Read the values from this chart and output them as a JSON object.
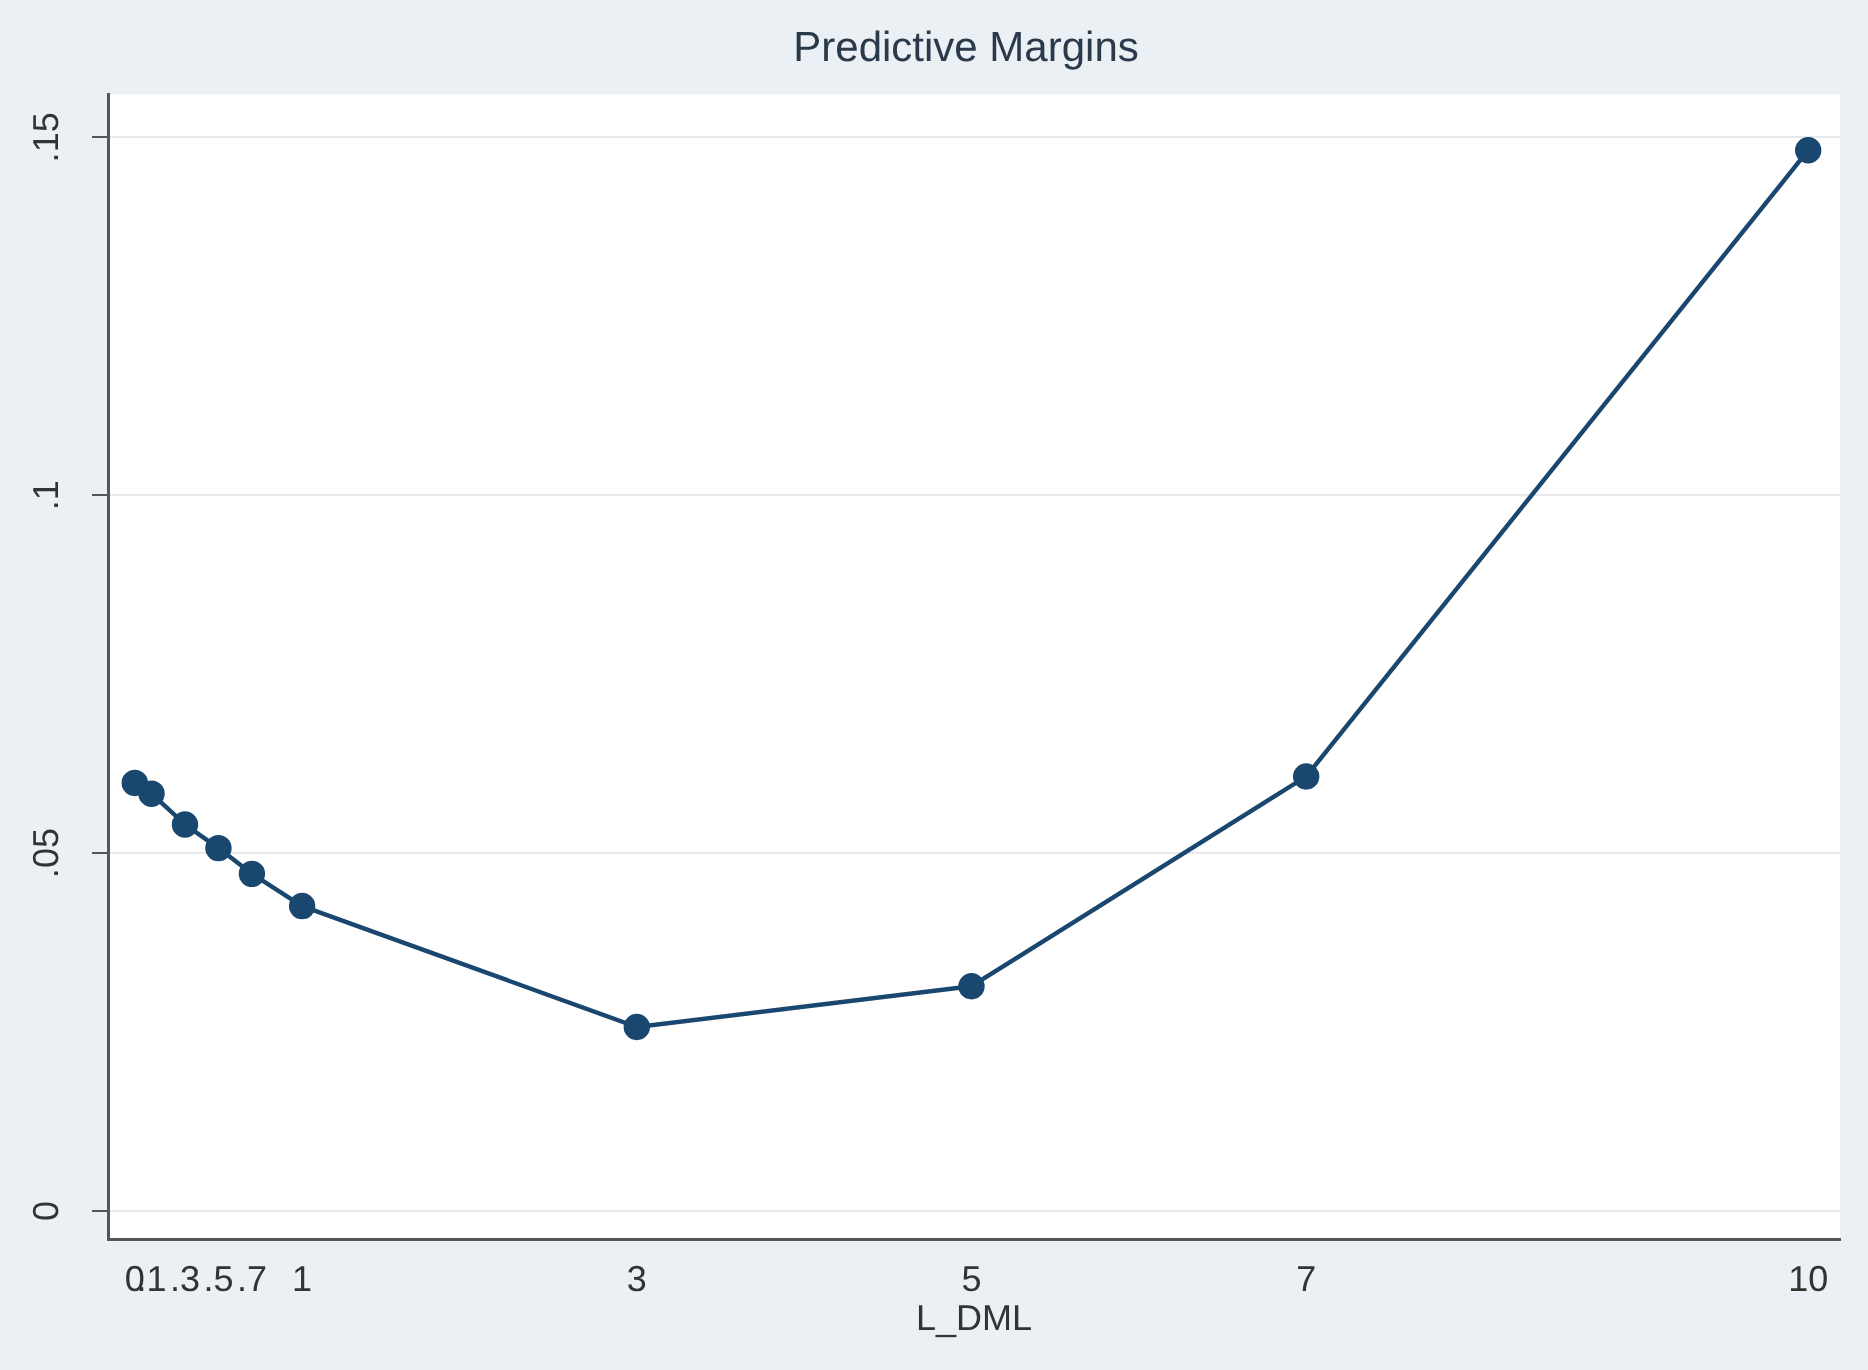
{
  "chart_data": {
    "type": "line",
    "title": "Predictive Margins",
    "xlabel": "L_DML",
    "x": [
      0,
      0.1,
      0.3,
      0.5,
      0.7,
      1,
      3,
      5,
      7,
      10
    ],
    "series": [
      {
        "color": "#1a476f",
        "values": [
          0.0598,
          0.0583,
          0.054,
          0.0507,
          0.0471,
          0.0426,
          0.0257,
          0.0314,
          0.0607,
          0.1482
        ]
      }
    ],
    "xlim": [
      -0.16,
      10.19
    ],
    "ylim": [
      -0.004,
      0.156
    ],
    "xticks": [
      0,
      {
        "value": 0.1,
        "label": ".1"
      },
      {
        "value": 0.3,
        "label": ".3"
      },
      {
        "value": 0.5,
        "label": ".5"
      },
      {
        "value": 0.7,
        "label": ".7"
      },
      1,
      3,
      5,
      7,
      10
    ],
    "yticks": [
      0,
      {
        "value": 0.05,
        "label": ".05"
      },
      {
        "value": 0.1,
        "label": ".1"
      },
      {
        "value": 0.15,
        "label": ".15"
      }
    ],
    "grid": "y",
    "marker": "circle",
    "line_style": "solid",
    "legend": false
  }
}
